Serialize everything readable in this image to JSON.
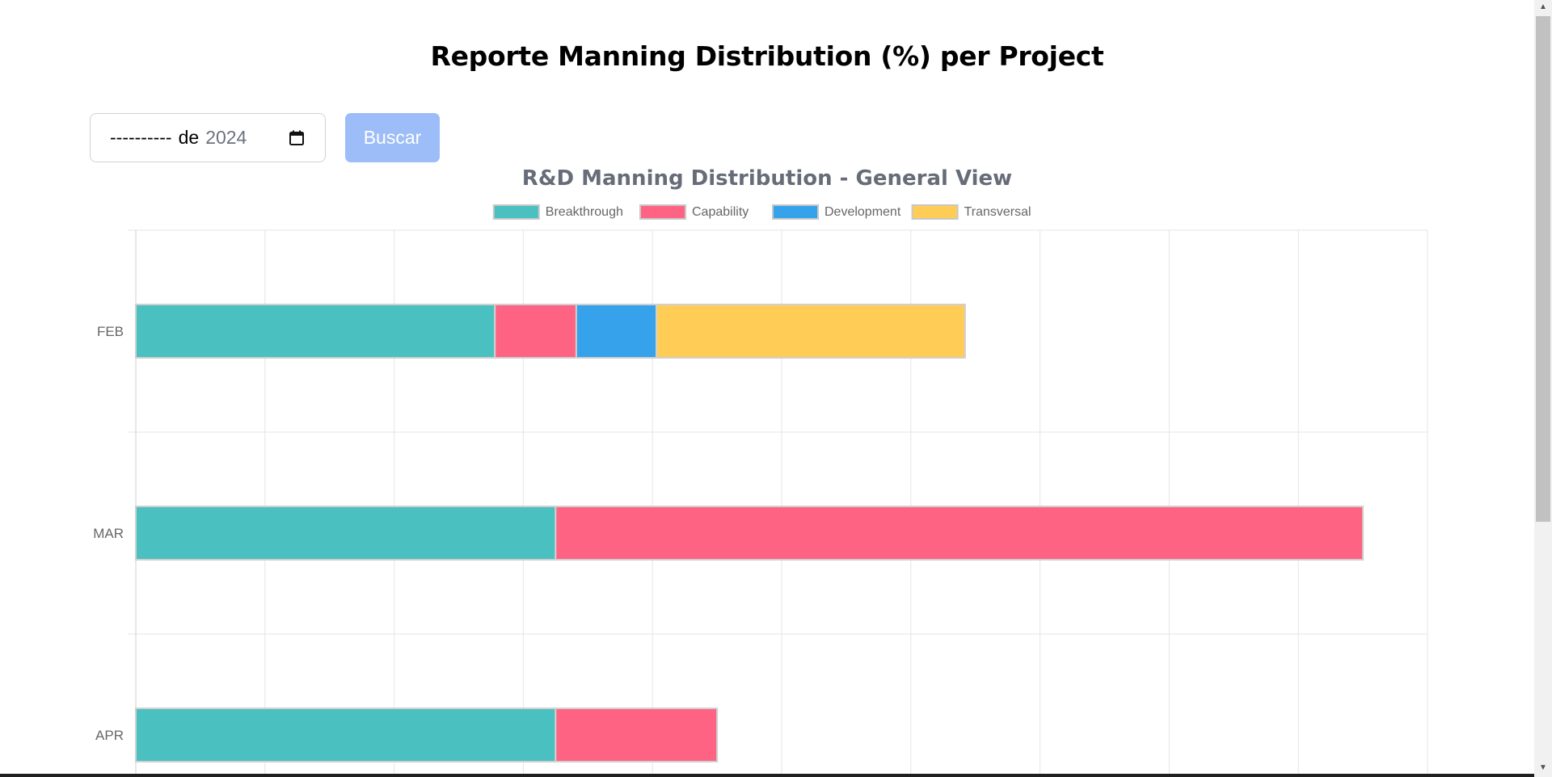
{
  "header": {
    "title": "Reporte Manning Distribution (%) per Project"
  },
  "filter": {
    "month_placeholder": "----------",
    "de_label": "de",
    "year_value": "2024",
    "search_label": "Buscar"
  },
  "icons": {
    "calendar": "calendar-icon",
    "scroll_up": "scroll-up-arrow-icon",
    "scroll_down": "scroll-down-arrow-icon"
  },
  "colors": {
    "breakthrough": "#4bc0c0",
    "capability": "#ff6384",
    "development": "#36a2eb",
    "transversal": "#ffcd56",
    "button": "#9dbdf8"
  },
  "chart_data": {
    "type": "bar",
    "orientation": "horizontal",
    "stacked": true,
    "title": "R&D Manning Distribution - General View",
    "categories": [
      "FEB",
      "MAR",
      "APR"
    ],
    "series": [
      {
        "name": "Breakthrough",
        "values": [
          2.78,
          3.25,
          3.25
        ]
      },
      {
        "name": "Capability",
        "values": [
          0.63,
          6.25,
          1.25
        ]
      },
      {
        "name": "Development",
        "values": [
          0.62,
          0,
          0
        ]
      },
      {
        "name": "Transversal",
        "values": [
          2.39,
          0,
          0
        ]
      }
    ],
    "xlim": [
      0,
      10
    ],
    "grid": true,
    "legend_position": "top"
  }
}
